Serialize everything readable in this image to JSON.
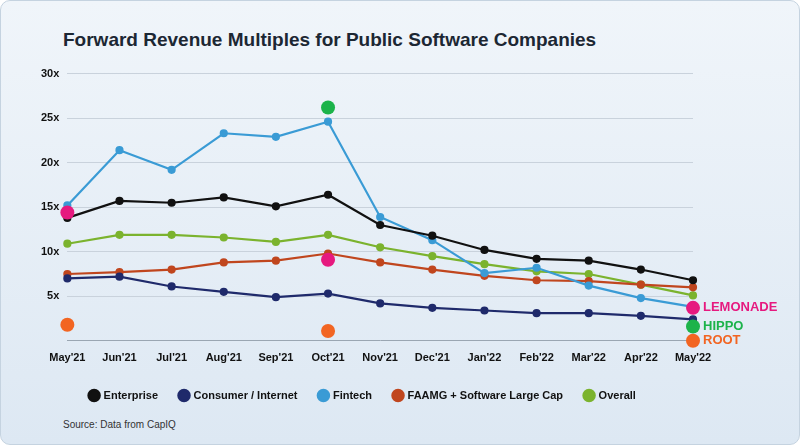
{
  "chart_data": {
    "type": "line",
    "title": "Forward Revenue Multiples for Public Software Companies",
    "source": "Source: Data from CapIQ",
    "categories": [
      "May'21",
      "Jun'21",
      "Jul'21",
      "Aug'21",
      "Sep'21",
      "Oct'21",
      "Nov'21",
      "Dec'21",
      "Jan'22",
      "Feb'22",
      "Mar'22",
      "Apr'22",
      "May'22"
    ],
    "series": [
      {
        "name": "Enterprise",
        "color": "#111111",
        "values": [
          13.8,
          15.7,
          15.5,
          16.1,
          15.1,
          16.4,
          13.0,
          11.8,
          10.2,
          9.2,
          9.0,
          8.0,
          6.8
        ]
      },
      {
        "name": "Consumer / Internet",
        "color": "#1f2a6b",
        "values": [
          7.0,
          7.2,
          6.1,
          5.5,
          4.9,
          5.3,
          4.2,
          3.7,
          3.4,
          3.1,
          3.1,
          2.8,
          2.4
        ]
      },
      {
        "name": "Fintech",
        "color": "#3a9bd5",
        "values": [
          15.2,
          21.4,
          19.2,
          23.3,
          22.9,
          24.6,
          13.9,
          11.3,
          7.6,
          8.2,
          6.2,
          4.8,
          3.8
        ]
      },
      {
        "name": "FAAMG + Software Large Cap",
        "color": "#c0461e",
        "values": [
          7.5,
          7.7,
          8.0,
          8.8,
          9.0,
          9.8,
          8.8,
          8.0,
          7.3,
          6.8,
          6.7,
          6.3,
          6.0
        ]
      },
      {
        "name": "Overall",
        "color": "#7bb32e",
        "values": [
          10.9,
          11.9,
          11.9,
          11.6,
          11.1,
          11.9,
          10.5,
          9.5,
          8.6,
          7.8,
          7.5,
          6.3,
          5.1
        ]
      },
      {
        "name": "LEMONADE",
        "type": "scatter",
        "color": "#e6197f",
        "values": [
          14.4,
          null,
          null,
          null,
          null,
          9.1,
          null,
          null,
          null,
          null,
          null,
          null,
          3.7
        ]
      },
      {
        "name": "HIPPO",
        "type": "scatter",
        "color": "#1cb34a",
        "values": [
          null,
          null,
          null,
          null,
          null,
          26.2,
          null,
          null,
          null,
          null,
          null,
          null,
          1.6
        ]
      },
      {
        "name": "ROOT",
        "type": "scatter",
        "color": "#f26522",
        "values": [
          1.8,
          null,
          null,
          null,
          null,
          1.1,
          null,
          null,
          null,
          null,
          null,
          null,
          0
        ]
      }
    ],
    "ylim": [
      0,
      30
    ],
    "yticks": [
      {
        "value": 5,
        "label": "5x"
      },
      {
        "value": 10,
        "label": "10x"
      },
      {
        "value": 15,
        "label": "15x"
      },
      {
        "value": 20,
        "label": "20x"
      },
      {
        "value": 25,
        "label": "25x"
      },
      {
        "value": 30,
        "label": "30x"
      }
    ],
    "grid": true,
    "legend": "bottom",
    "marker": "circle"
  }
}
